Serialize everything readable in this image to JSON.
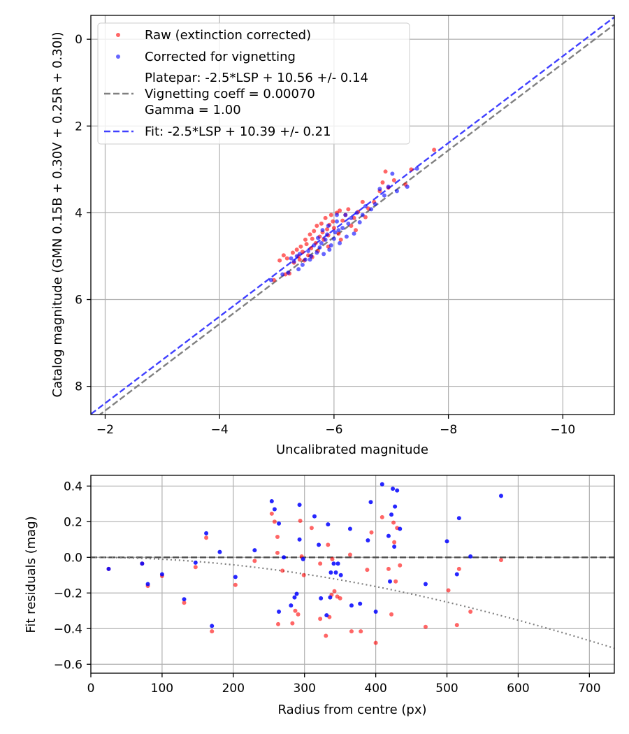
{
  "chart_data": [
    {
      "type": "scatter",
      "title": "",
      "xlabel": "Uncalibrated magnitude",
      "ylabel": "Catalog magnitude (GMN 0.15B + 0.30V + 0.25R + 0.30I)",
      "xlim": [
        -1.75,
        -10.9
      ],
      "ylim": [
        8.65,
        -0.55
      ],
      "x_inverted": true,
      "y_inverted": true,
      "grid": true,
      "legend_position": "upper-left",
      "xticks": [
        -2,
        -4,
        -6,
        -8,
        -10
      ],
      "xtick_labels": [
        "−2",
        "−4",
        "−6",
        "−8",
        "−10"
      ],
      "yticks": [
        0,
        2,
        4,
        6,
        8
      ],
      "ytick_labels": [
        "0",
        "2",
        "4",
        "6",
        "8"
      ],
      "legend": {
        "raw": "Raw (extinction corrected)",
        "corrected": "Corrected for vignetting",
        "platepar_1": "Platepar: -2.5*LSP + 10.56 +/- 0.14",
        "platepar_2": "Vignetting coeff = 0.00070",
        "platepar_3": "Gamma = 1.00",
        "fit": "Fit: -2.5*LSP + 10.39 +/- 0.21"
      },
      "series": [
        {
          "name": "Raw (extinction corrected)",
          "color": "#ff0000",
          "points": [
            [
              -4.95,
              5.55
            ],
            [
              -5.05,
              5.1
            ],
            [
              -5.12,
              4.98
            ],
            [
              -5.18,
              5.05
            ],
            [
              -5.22,
              5.4
            ],
            [
              -5.28,
              4.92
            ],
            [
              -5.3,
              5.15
            ],
            [
              -5.35,
              4.85
            ],
            [
              -5.38,
              5.0
            ],
            [
              -5.42,
              4.78
            ],
            [
              -5.45,
              4.9
            ],
            [
              -5.48,
              5.1
            ],
            [
              -5.5,
              4.62
            ],
            [
              -5.52,
              4.72
            ],
            [
              -5.55,
              4.98
            ],
            [
              -5.58,
              4.5
            ],
            [
              -5.6,
              4.82
            ],
            [
              -5.62,
              4.6
            ],
            [
              -5.65,
              4.42
            ],
            [
              -5.68,
              4.7
            ],
            [
              -5.7,
              4.3
            ],
            [
              -5.72,
              4.88
            ],
            [
              -5.75,
              4.55
            ],
            [
              -5.78,
              4.25
            ],
            [
              -5.8,
              4.45
            ],
            [
              -5.82,
              4.62
            ],
            [
              -5.85,
              4.12
            ],
            [
              -5.88,
              4.38
            ],
            [
              -5.9,
              4.52
            ],
            [
              -5.92,
              4.28
            ],
            [
              -5.95,
              4.05
            ],
            [
              -5.98,
              4.2
            ],
            [
              -6.0,
              4.35
            ],
            [
              -6.05,
              4.0
            ],
            [
              -6.08,
              4.48
            ],
            [
              -6.1,
              3.95
            ],
            [
              -6.15,
              4.18
            ],
            [
              -6.2,
              4.05
            ],
            [
              -6.25,
              3.92
            ],
            [
              -6.3,
              4.3
            ],
            [
              -6.35,
              4.12
            ],
            [
              -6.42,
              3.98
            ],
            [
              -6.5,
              3.75
            ],
            [
              -6.55,
              4.1
            ],
            [
              -6.6,
              3.9
            ],
            [
              -6.7,
              3.75
            ],
            [
              -6.8,
              3.5
            ],
            [
              -6.85,
              3.3
            ],
            [
              -6.9,
              3.05
            ],
            [
              -6.95,
              3.42
            ],
            [
              -7.05,
              3.25
            ],
            [
              -7.25,
              3.35
            ],
            [
              -7.35,
              3.0
            ],
            [
              -7.75,
              2.55
            ],
            [
              -5.15,
              5.42
            ],
            [
              -5.4,
              5.08
            ],
            [
              -5.62,
              5.02
            ],
            [
              -5.9,
              4.78
            ],
            [
              -6.12,
              4.62
            ],
            [
              -6.38,
              4.4
            ]
          ]
        },
        {
          "name": "Corrected for vignetting",
          "color": "#0000ff",
          "points": [
            [
              -4.9,
              5.55
            ],
            [
              -5.1,
              5.42
            ],
            [
              -5.2,
              5.38
            ],
            [
              -5.25,
              5.05
            ],
            [
              -5.3,
              5.12
            ],
            [
              -5.35,
              5.0
            ],
            [
              -5.4,
              4.95
            ],
            [
              -5.45,
              5.2
            ],
            [
              -5.5,
              5.08
            ],
            [
              -5.55,
              4.88
            ],
            [
              -5.6,
              5.0
            ],
            [
              -5.65,
              4.75
            ],
            [
              -5.7,
              4.92
            ],
            [
              -5.72,
              4.58
            ],
            [
              -5.75,
              4.8
            ],
            [
              -5.78,
              4.7
            ],
            [
              -5.8,
              4.4
            ],
            [
              -5.82,
              4.95
            ],
            [
              -5.85,
              4.62
            ],
            [
              -5.88,
              4.5
            ],
            [
              -5.9,
              4.3
            ],
            [
              -5.92,
              4.85
            ],
            [
              -5.95,
              4.75
            ],
            [
              -6.0,
              4.6
            ],
            [
              -6.02,
              4.45
            ],
            [
              -6.05,
              4.2
            ],
            [
              -6.08,
              4.4
            ],
            [
              -6.1,
              4.7
            ],
            [
              -6.15,
              4.35
            ],
            [
              -6.2,
              4.05
            ],
            [
              -6.25,
              4.25
            ],
            [
              -6.3,
              4.12
            ],
            [
              -6.35,
              4.48
            ],
            [
              -6.4,
              4.0
            ],
            [
              -6.45,
              4.22
            ],
            [
              -6.55,
              3.85
            ],
            [
              -6.65,
              3.92
            ],
            [
              -6.72,
              3.8
            ],
            [
              -6.8,
              3.45
            ],
            [
              -6.88,
              3.6
            ],
            [
              -6.95,
              3.4
            ],
            [
              -7.02,
              3.1
            ],
            [
              -7.1,
              3.5
            ],
            [
              -7.28,
              3.4
            ],
            [
              -7.45,
              2.98
            ],
            [
              -6.5,
              4.05
            ],
            [
              -6.05,
              4.05
            ],
            [
              -5.58,
              5.08
            ],
            [
              -5.38,
              5.3
            ],
            [
              -6.22,
              4.55
            ]
          ]
        }
      ],
      "lines": [
        {
          "name": "Platepar",
          "color": "#808080",
          "style": "dashed",
          "intercept": 10.56
        },
        {
          "name": "Fit",
          "color": "#4040ff",
          "style": "dashed",
          "intercept": 10.39
        }
      ]
    },
    {
      "type": "scatter",
      "title": "",
      "xlabel": "Radius from centre (px)",
      "ylabel": "Fit residuals (mag)",
      "xlim": [
        0,
        735
      ],
      "ylim": [
        -0.65,
        0.46
      ],
      "grid": true,
      "xticks": [
        0,
        100,
        200,
        300,
        400,
        500,
        600,
        700
      ],
      "xtick_labels": [
        "0",
        "100",
        "200",
        "300",
        "400",
        "500",
        "600",
        "700"
      ],
      "yticks": [
        0.4,
        0.2,
        0.0,
        -0.2,
        -0.4,
        -0.6
      ],
      "ytick_labels": [
        "0.4",
        "0.2",
        "0.0",
        "−0.2",
        "−0.4",
        "−0.6"
      ],
      "series": [
        {
          "name": "Raw (extinction corrected)",
          "color": "#ff0000",
          "points": [
            [
              25,
              -0.065
            ],
            [
              72,
              -0.035
            ],
            [
              80,
              -0.16
            ],
            [
              100,
              -0.105
            ],
            [
              131,
              -0.255
            ],
            [
              147,
              -0.055
            ],
            [
              162,
              0.11
            ],
            [
              170,
              -0.415
            ],
            [
              203,
              -0.155
            ],
            [
              230,
              -0.02
            ],
            [
              254,
              0.245
            ],
            [
              258,
              0.2
            ],
            [
              262,
              0.115
            ],
            [
              262,
              0.025
            ],
            [
              263,
              -0.375
            ],
            [
              269,
              -0.075
            ],
            [
              283,
              -0.37
            ],
            [
              287,
              -0.3
            ],
            [
              291,
              -0.32
            ],
            [
              294,
              0.205
            ],
            [
              296,
              0.005
            ],
            [
              299,
              -0.1
            ],
            [
              310,
              0.165
            ],
            [
              322,
              -0.035
            ],
            [
              322,
              -0.345
            ],
            [
              330,
              -0.44
            ],
            [
              333,
              0.07
            ],
            [
              335,
              -0.335
            ],
            [
              338,
              -0.21
            ],
            [
              339,
              -0.01
            ],
            [
              342,
              -0.19
            ],
            [
              346,
              -0.22
            ],
            [
              350,
              -0.23
            ],
            [
              364,
              0.015
            ],
            [
              366,
              -0.415
            ],
            [
              379,
              -0.415
            ],
            [
              388,
              -0.07
            ],
            [
              394,
              0.14
            ],
            [
              400,
              -0.48
            ],
            [
              409,
              0.225
            ],
            [
              418,
              -0.065
            ],
            [
              422,
              -0.32
            ],
            [
              425,
              0.195
            ],
            [
              426,
              0.085
            ],
            [
              428,
              -0.135
            ],
            [
              430,
              0.165
            ],
            [
              434,
              -0.045
            ],
            [
              470,
              -0.39
            ],
            [
              502,
              -0.185
            ],
            [
              514,
              -0.38
            ],
            [
              517,
              -0.065
            ],
            [
              533,
              -0.305
            ],
            [
              576,
              -0.015
            ]
          ]
        },
        {
          "name": "Corrected for vignetting",
          "color": "#0000ff",
          "points": [
            [
              25,
              -0.065
            ],
            [
              72,
              -0.035
            ],
            [
              80,
              -0.15
            ],
            [
              100,
              -0.095
            ],
            [
              131,
              -0.235
            ],
            [
              147,
              -0.03
            ],
            [
              162,
              0.135
            ],
            [
              170,
              -0.385
            ],
            [
              181,
              0.03
            ],
            [
              203,
              -0.11
            ],
            [
              230,
              0.04
            ],
            [
              254,
              0.315
            ],
            [
              258,
              0.27
            ],
            [
              264,
              0.19
            ],
            [
              264,
              -0.305
            ],
            [
              271,
              0.0
            ],
            [
              281,
              -0.27
            ],
            [
              286,
              -0.225
            ],
            [
              289,
              -0.205
            ],
            [
              293,
              0.295
            ],
            [
              293,
              0.1
            ],
            [
              298,
              -0.01
            ],
            [
              314,
              0.23
            ],
            [
              320,
              0.07
            ],
            [
              323,
              -0.23
            ],
            [
              331,
              -0.325
            ],
            [
              333,
              0.185
            ],
            [
              336,
              -0.225
            ],
            [
              337,
              -0.085
            ],
            [
              341,
              -0.035
            ],
            [
              344,
              -0.085
            ],
            [
              347,
              -0.035
            ],
            [
              351,
              -0.1
            ],
            [
              364,
              0.16
            ],
            [
              366,
              -0.27
            ],
            [
              378,
              -0.26
            ],
            [
              389,
              0.095
            ],
            [
              393,
              0.31
            ],
            [
              400,
              -0.305
            ],
            [
              409,
              0.41
            ],
            [
              418,
              0.12
            ],
            [
              420,
              -0.135
            ],
            [
              422,
              0.24
            ],
            [
              424,
              0.385
            ],
            [
              426,
              0.06
            ],
            [
              427,
              0.285
            ],
            [
              430,
              0.375
            ],
            [
              434,
              0.16
            ],
            [
              470,
              -0.15
            ],
            [
              500,
              0.09
            ],
            [
              514,
              -0.095
            ],
            [
              517,
              0.22
            ],
            [
              533,
              0.005
            ],
            [
              576,
              0.345
            ]
          ]
        }
      ],
      "lines": [
        {
          "name": "zero",
          "color": "#505050",
          "style": "dashed",
          "value": 0.0
        },
        {
          "name": "vignetting model",
          "color": "#808080",
          "style": "dotted",
          "coefficient": 0.0007
        }
      ]
    }
  ]
}
